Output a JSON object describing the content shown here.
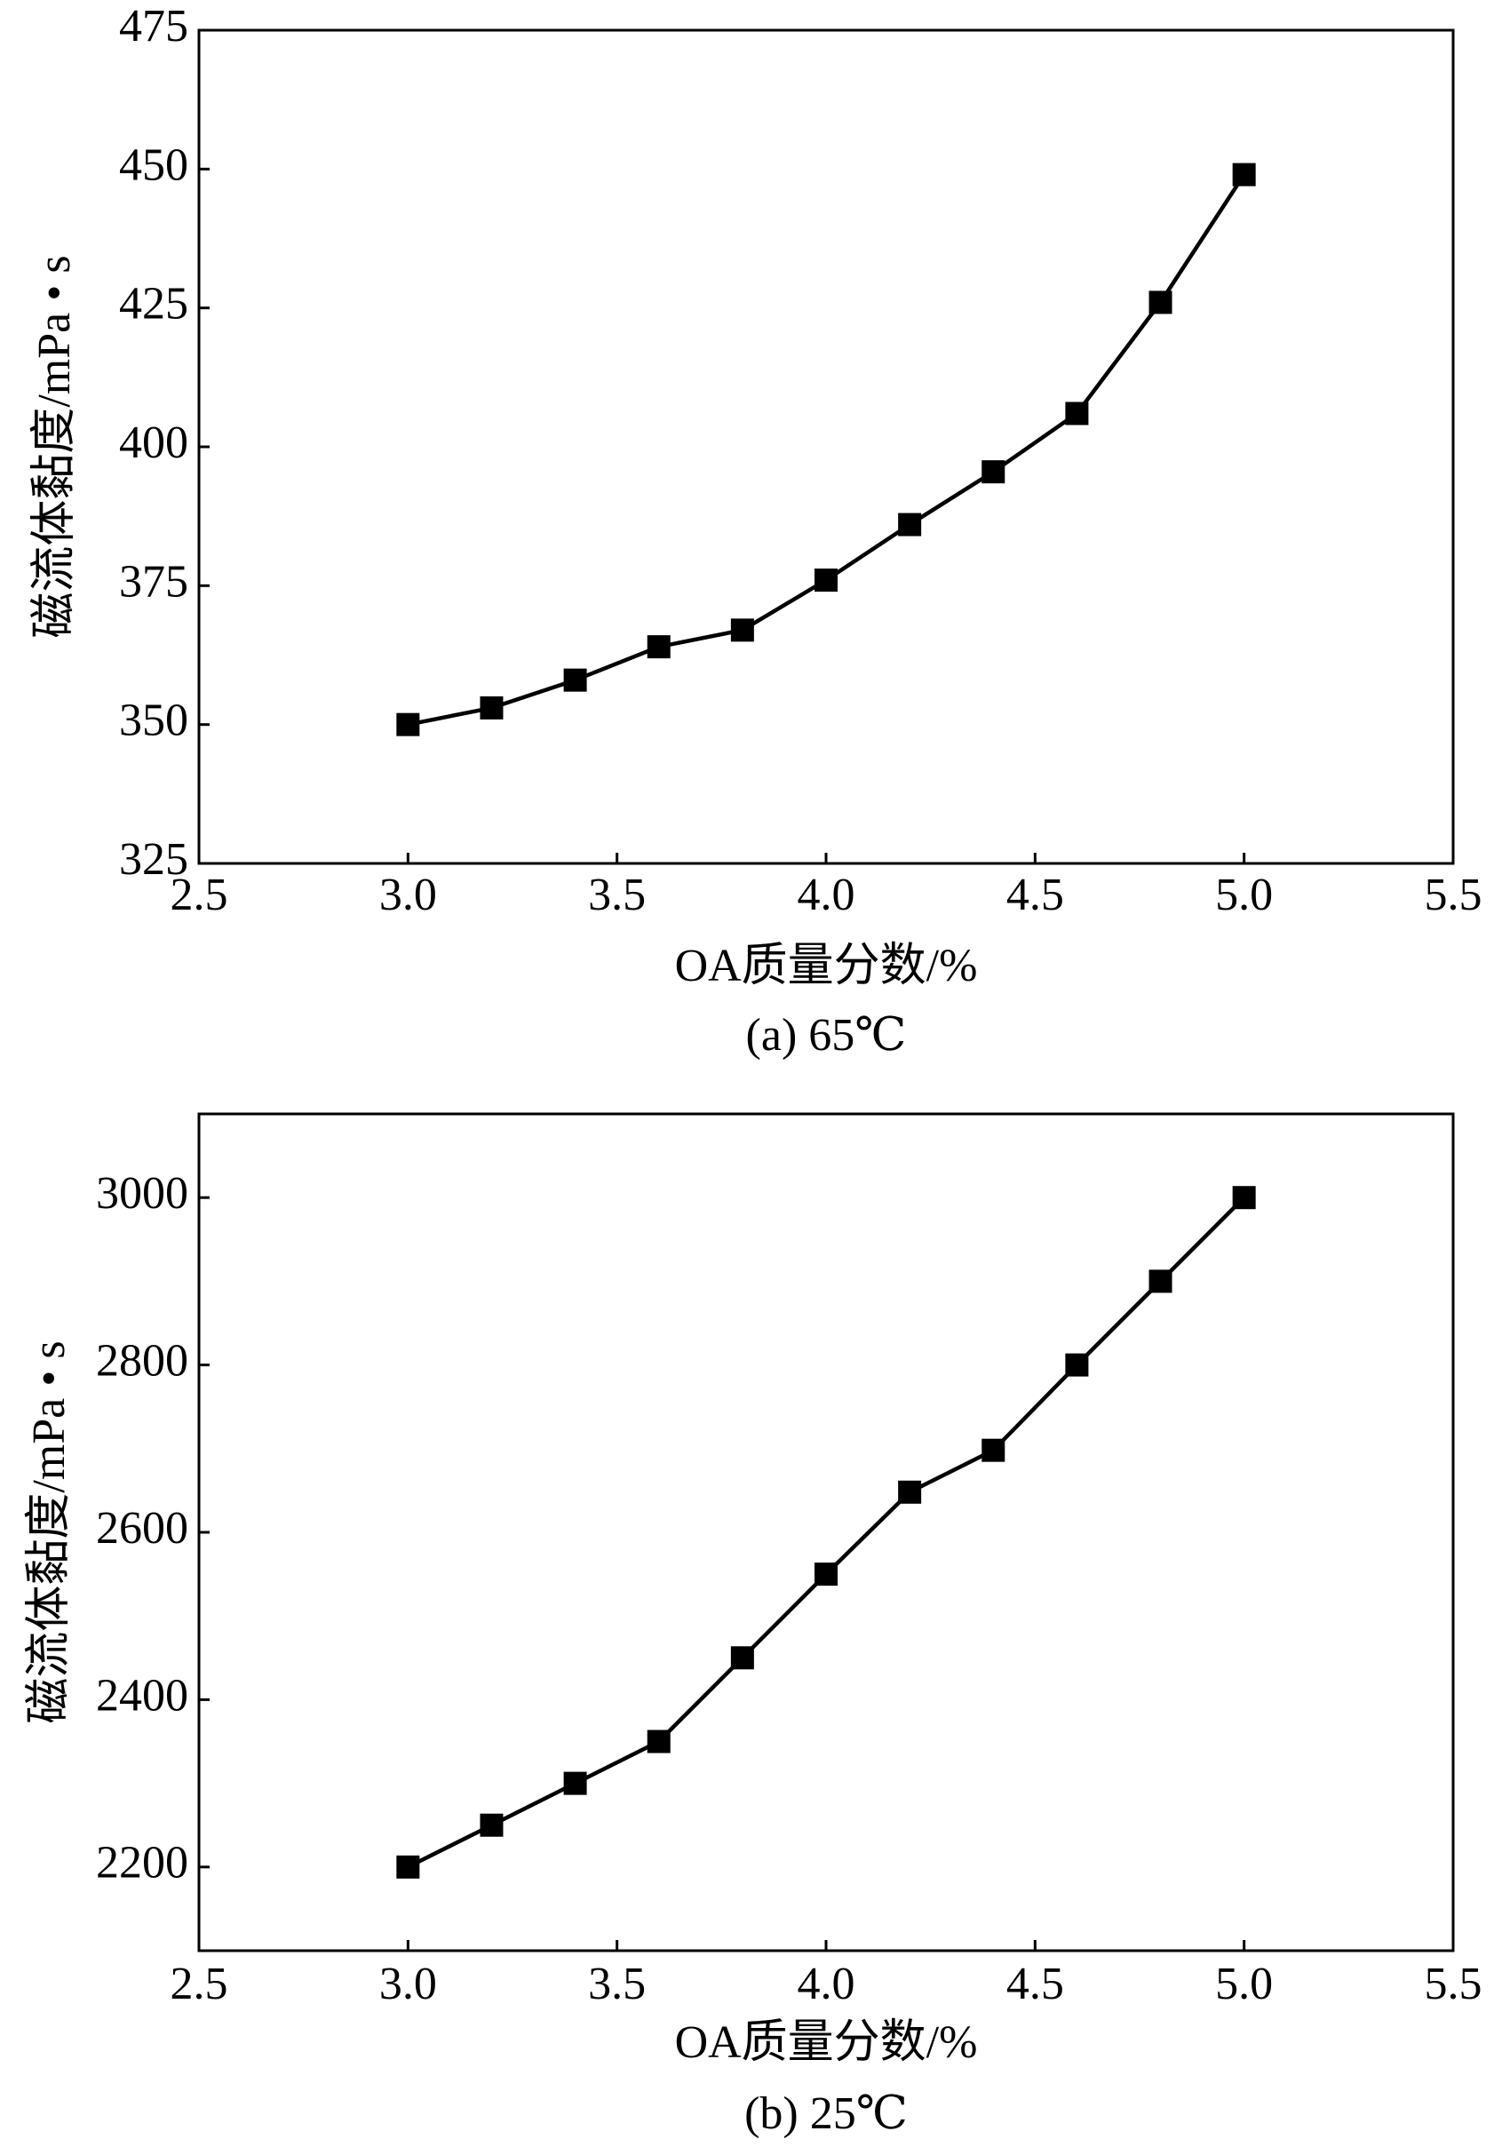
{
  "chart_data": [
    {
      "type": "line",
      "x_label": "OA质量分数/%",
      "y_label": "磁流体黏度/mPa • s",
      "caption": "(a) 65℃",
      "x": [
        3.0,
        3.2,
        3.4,
        3.6,
        3.8,
        4.0,
        4.2,
        4.4,
        4.6,
        4.8,
        5.0
      ],
      "series": [
        {
          "color": "#000000",
          "values": [
            350,
            353,
            358,
            364,
            367,
            376,
            386,
            395.5,
            406,
            426,
            449
          ]
        }
      ],
      "xlim": [
        2.5,
        5.5
      ],
      "xticks": [
        2.5,
        {
          "value": 3,
          "label": "3.0"
        },
        3.5,
        {
          "value": 4,
          "label": "4.0"
        },
        4.5,
        {
          "value": 5,
          "label": "5.0"
        },
        5.5
      ],
      "ylim": [
        325,
        475
      ],
      "yticks": [
        325,
        350,
        375,
        400,
        425,
        450,
        475
      ]
    },
    {
      "type": "line",
      "x_label": "OA质量分数/%",
      "y_label": "磁流体黏度/mPa • s",
      "caption": "(b) 25℃",
      "x": [
        3.0,
        3.2,
        3.4,
        3.6,
        3.8,
        4.0,
        4.2,
        4.4,
        4.6,
        4.8,
        5.0
      ],
      "series": [
        {
          "color": "#000000",
          "values": [
            2200,
            2250,
            2300,
            2350,
            2450,
            2550,
            2648,
            2698,
            2800,
            2900,
            3000
          ]
        }
      ],
      "xlim": [
        2.5,
        5.5
      ],
      "xticks": [
        2.5,
        {
          "value": 3,
          "label": "3.0"
        },
        3.5,
        {
          "value": 4,
          "label": "4.0"
        },
        4.5,
        {
          "value": 5,
          "label": "5.0"
        },
        5.5
      ],
      "ylim": [
        2100,
        3100
      ],
      "yticks": [
        2200,
        2400,
        2600,
        2800,
        3000
      ]
    }
  ]
}
